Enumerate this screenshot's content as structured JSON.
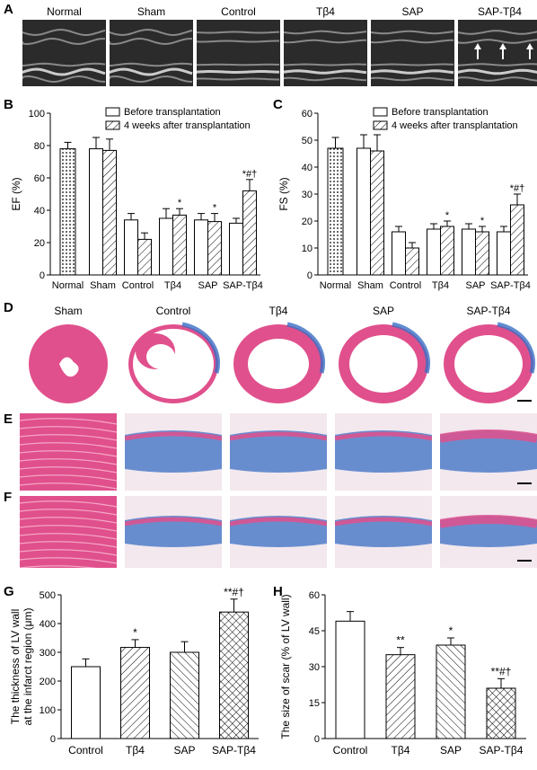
{
  "panel_letters": [
    "A",
    "B",
    "C",
    "D",
    "E",
    "F",
    "G",
    "H"
  ],
  "echo_labels": [
    "Normal",
    "Sham",
    "Control",
    "Tβ4",
    "SAP",
    "SAP-Tβ4"
  ],
  "histology_labels": [
    "Sham",
    "Control",
    "Tβ4",
    "SAP",
    "SAP-Tβ4"
  ],
  "colors": {
    "echo_bg": "#2b2b2b",
    "myocardium": "#e0508c",
    "fibrosis": "#3a6fc4",
    "tissue_bg": "#f2e8ee"
  },
  "chart_data": [
    {
      "id": "B",
      "type": "bar",
      "ylabel": "EF (%)",
      "ylim": [
        0,
        100
      ],
      "yticks": [
        0,
        20,
        40,
        60,
        80,
        100
      ],
      "categories": [
        "Normal",
        "Sham",
        "Control",
        "Tβ4",
        "SAP",
        "SAP-Tβ4"
      ],
      "legend": [
        "Before transplantation",
        "4 weeks after transplantation"
      ],
      "single": {
        "value": 78,
        "err": 4
      },
      "before": [
        null,
        78,
        34,
        35,
        34,
        32
      ],
      "before_err": [
        null,
        7,
        4,
        6,
        4,
        3
      ],
      "after": [
        null,
        77,
        22,
        37,
        33,
        52
      ],
      "after_err": [
        null,
        7,
        4,
        4,
        5,
        7
      ],
      "annotations": [
        "",
        "",
        "",
        "*",
        "*",
        "*#†"
      ]
    },
    {
      "id": "C",
      "type": "bar",
      "ylabel": "FS (%)",
      "ylim": [
        0,
        60
      ],
      "yticks": [
        0,
        10,
        20,
        30,
        40,
        50,
        60
      ],
      "categories": [
        "Normal",
        "Sham",
        "Control",
        "Tβ4",
        "SAP",
        "SAP-Tβ4"
      ],
      "legend": [
        "Before transplantation",
        "4 weeks after transplantation"
      ],
      "single": {
        "value": 47,
        "err": 4
      },
      "before": [
        null,
        47,
        16,
        17,
        17,
        16
      ],
      "before_err": [
        null,
        5,
        2,
        2,
        2,
        2
      ],
      "after": [
        null,
        46,
        10,
        18,
        16,
        26
      ],
      "after_err": [
        null,
        6,
        2,
        2,
        2,
        4
      ],
      "annotations": [
        "",
        "",
        "",
        "*",
        "*",
        "*#†"
      ]
    },
    {
      "id": "G",
      "type": "bar",
      "ylabel": [
        "The thickness of LV wall",
        "at the infarct region (μm)"
      ],
      "ylim": [
        0,
        500
      ],
      "yticks": [
        0,
        100,
        200,
        300,
        400,
        500
      ],
      "categories": [
        "Control",
        "Tβ4",
        "SAP",
        "SAP-Tβ4"
      ],
      "values": [
        250,
        317,
        300,
        440
      ],
      "errors": [
        27,
        27,
        37,
        45
      ],
      "patterns": [
        "none",
        "diag",
        "back",
        "cross"
      ],
      "annotations": [
        "",
        "*",
        "",
        "**#†"
      ]
    },
    {
      "id": "H",
      "type": "bar",
      "ylabel": [
        "The size of scar (% of LV wall)"
      ],
      "ylim": [
        0,
        60
      ],
      "yticks": [
        0,
        15,
        30,
        45,
        60
      ],
      "categories": [
        "Control",
        "Tβ4",
        "SAP",
        "SAP-Tβ4"
      ],
      "values": [
        49,
        35,
        39,
        21
      ],
      "errors": [
        4,
        3,
        3,
        4
      ],
      "patterns": [
        "none",
        "diag",
        "back",
        "cross"
      ],
      "annotations": [
        "",
        "**",
        "*",
        "**#†"
      ]
    }
  ]
}
